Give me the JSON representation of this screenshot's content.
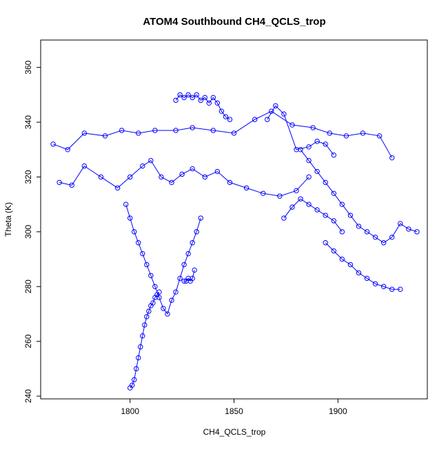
{
  "chart_data": {
    "type": "scatter",
    "title": "ATOM4 Southbound CH4_QCLS_trop",
    "xlabel": "CH4_QCLS_trop",
    "ylabel": "Theta (K)",
    "xlim": [
      1757,
      1943
    ],
    "ylim": [
      239,
      370
    ],
    "xticks": [
      1800,
      1850,
      1900
    ],
    "yticks": [
      240,
      260,
      280,
      300,
      320,
      340,
      360
    ],
    "grid": false,
    "legend": "none",
    "point_style": "open circle with connecting line",
    "color": "#0000ff",
    "series": [
      {
        "x": [
          1763,
          1770,
          1778,
          1788,
          1796,
          1804,
          1812,
          1822,
          1830,
          1840,
          1850,
          1860,
          1868,
          1878,
          1888,
          1896,
          1904,
          1912,
          1920,
          1926
        ],
        "y": [
          332,
          330,
          336,
          335,
          337,
          336,
          337,
          337,
          338,
          337,
          336,
          341,
          344,
          339,
          338,
          336,
          335,
          336,
          335,
          327
        ],
        "cluster": "top band"
      },
      {
        "x": [
          1766,
          1772,
          1778,
          1786,
          1794,
          1800,
          1806,
          1810,
          1815,
          1820,
          1825,
          1830,
          1836,
          1842,
          1848,
          1856,
          1864,
          1872,
          1880,
          1886
        ],
        "y": [
          318,
          317,
          324,
          320,
          316,
          320,
          324,
          326,
          320,
          318,
          321,
          323,
          320,
          322,
          318,
          316,
          314,
          313,
          315,
          320
        ],
        "cluster": "upper-left band"
      },
      {
        "x": [
          1822,
          1824,
          1826,
          1828,
          1830,
          1832,
          1834,
          1836,
          1838,
          1840,
          1842,
          1844,
          1846,
          1848
        ],
        "y": [
          348,
          350,
          349,
          350,
          349,
          350,
          348,
          349,
          347,
          349,
          347,
          344,
          342,
          341
        ],
        "cluster": "top peak"
      },
      {
        "x": [
          1798,
          1800,
          1802,
          1804,
          1806,
          1808,
          1810,
          1812,
          1814,
          1816,
          1818,
          1820,
          1822,
          1824,
          1826,
          1828,
          1830,
          1832,
          1834
        ],
        "y": [
          310,
          305,
          300,
          296,
          292,
          288,
          284,
          280,
          276,
          272,
          270,
          275,
          278,
          283,
          288,
          292,
          296,
          300,
          305
        ],
        "cluster": "central core"
      },
      {
        "x": [
          1800,
          1801,
          1802,
          1803,
          1804,
          1805,
          1806,
          1807,
          1808,
          1809,
          1810,
          1811,
          1812,
          1813,
          1814
        ],
        "y": [
          243,
          244,
          246,
          250,
          254,
          258,
          262,
          266,
          269,
          271,
          273,
          274,
          276,
          277,
          278
        ],
        "cluster": "lower tail"
      },
      {
        "x": [
          1826,
          1827,
          1828,
          1829,
          1830,
          1831
        ],
        "y": [
          282,
          282,
          283,
          282,
          283,
          286
        ],
        "cluster": "small low cluster"
      },
      {
        "x": [
          1882,
          1886,
          1890,
          1894,
          1898,
          1902,
          1906,
          1910,
          1914,
          1918,
          1922,
          1926,
          1930,
          1934,
          1938
        ],
        "y": [
          330,
          326,
          322,
          318,
          314,
          310,
          306,
          302,
          300,
          298,
          296,
          298,
          303,
          301,
          300
        ],
        "cluster": "right diagonal"
      },
      {
        "x": [
          1894,
          1898,
          1902,
          1906,
          1910,
          1914,
          1918,
          1922,
          1926,
          1930
        ],
        "y": [
          296,
          293,
          290,
          288,
          285,
          283,
          281,
          280,
          279,
          279
        ],
        "cluster": "right lower"
      },
      {
        "x": [
          1866,
          1870,
          1874,
          1880,
          1886,
          1890,
          1894,
          1898
        ],
        "y": [
          341,
          346,
          343,
          330,
          331,
          333,
          332,
          328
        ],
        "cluster": "right top"
      },
      {
        "x": [
          1874,
          1878,
          1882,
          1886,
          1890,
          1894,
          1898,
          1902
        ],
        "y": [
          305,
          309,
          312,
          310,
          308,
          306,
          304,
          300
        ],
        "cluster": "right middle"
      }
    ]
  }
}
